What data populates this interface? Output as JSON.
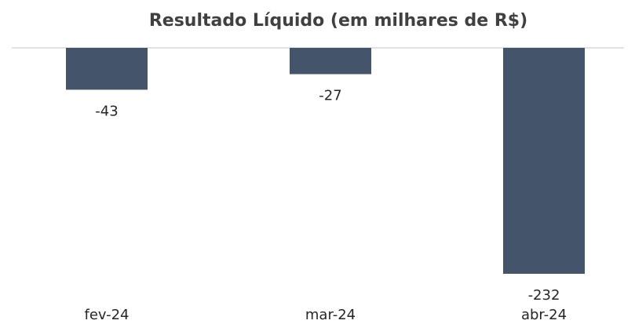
{
  "chart_data": {
    "type": "bar",
    "title": "Resultado Líquido (em milhares de R$)",
    "categories": [
      "fev-24",
      "mar-24",
      "abr-24"
    ],
    "values": [
      -43,
      -27,
      -232
    ],
    "color": "#44546a"
  }
}
